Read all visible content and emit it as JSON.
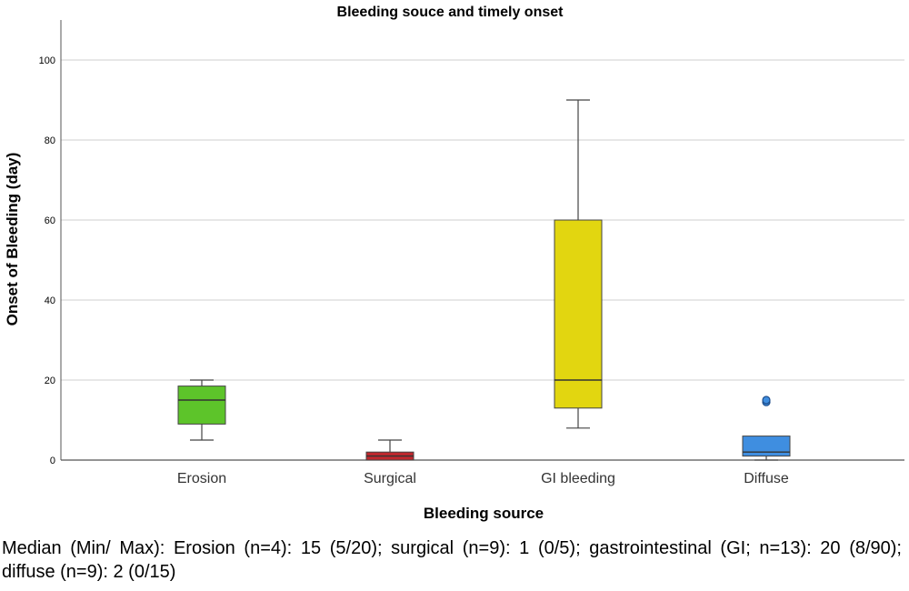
{
  "chart_data": {
    "type": "boxplot",
    "title": "Bleeding souce and timely onset",
    "xlabel": "Bleeding source",
    "ylabel": "Onset of Bleeding (day)",
    "ylim": [
      0,
      110
    ],
    "yticks": [
      0,
      20,
      40,
      60,
      80,
      100
    ],
    "grid": true,
    "categories": [
      "Erosion",
      "Surgical",
      "GI bleeding",
      "Diffuse"
    ],
    "boxes": [
      {
        "category": "Erosion",
        "whisker_low": 5,
        "q1": 9,
        "median": 15,
        "q3": 18.5,
        "whisker_high": 20,
        "outliers": [],
        "color": "#5dc42a"
      },
      {
        "category": "Surgical",
        "whisker_low": 0,
        "q1": 0,
        "median": 1,
        "q3": 2,
        "whisker_high": 5,
        "outliers": [],
        "color": "#c0272d"
      },
      {
        "category": "GI bleeding",
        "whisker_low": 8,
        "q1": 13,
        "median": 20,
        "q3": 60,
        "whisker_high": 90,
        "outliers": [],
        "color": "#e2d610"
      },
      {
        "category": "Diffuse",
        "whisker_low": 0,
        "q1": 1,
        "median": 2,
        "q3": 6,
        "whisker_high": 6,
        "outliers": [
          14.5,
          15
        ],
        "color": "#3f8ee0"
      }
    ]
  },
  "caption": "Median (Min/ Max):  Erosion (n=4): 15 (5/20); surgical (n=9): 1 (0/5); gastrointestinal (GI; n=13): 20 (8/90); diffuse (n=9): 2 (0/15)"
}
